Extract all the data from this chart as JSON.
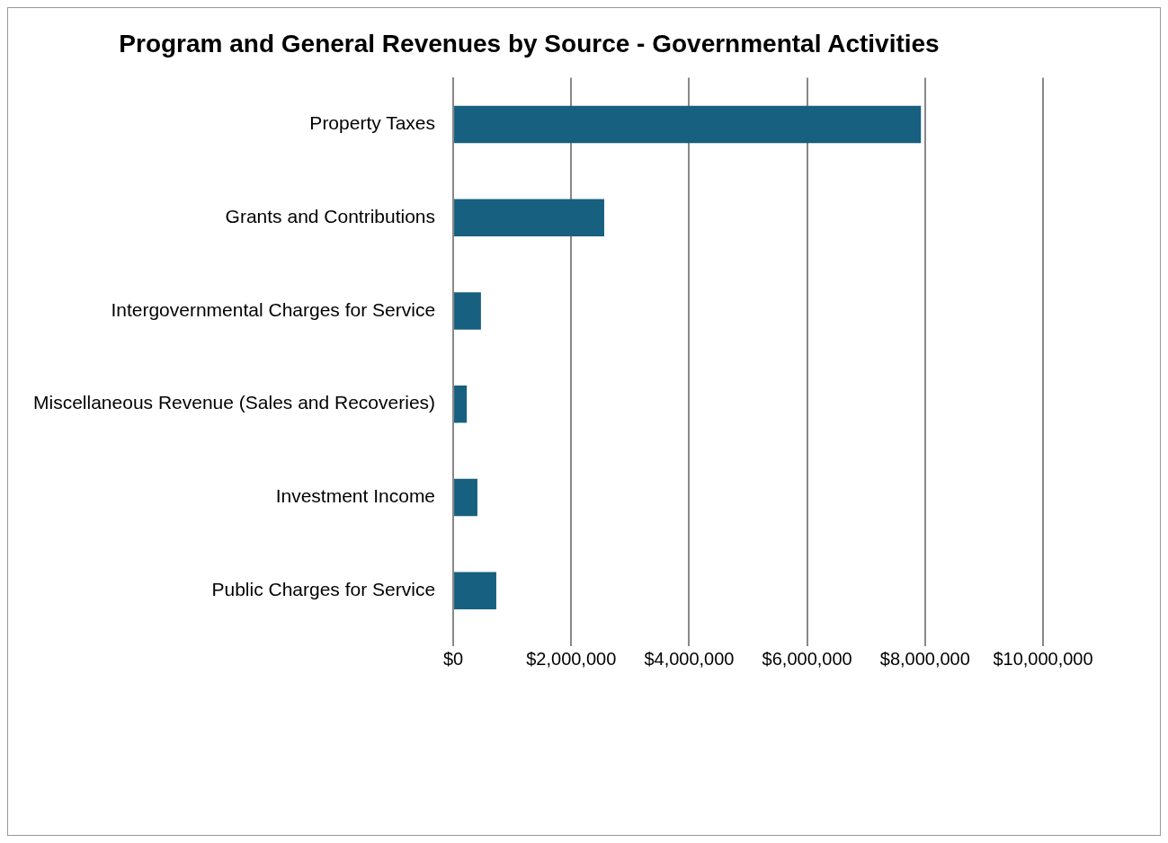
{
  "chart_data": {
    "type": "bar",
    "orientation": "horizontal",
    "title": "Program and General Revenues by Source - Governmental Activities",
    "categories": [
      "Property Taxes",
      "Grants and Contributions",
      "Intergovernmental Charges for Service",
      "Miscellaneous Revenue (Sales and Recoveries)",
      "Investment Income",
      "Public Charges for Service"
    ],
    "values": [
      7930000,
      2560000,
      470000,
      230000,
      410000,
      730000
    ],
    "color": "#17607f",
    "xlim": [
      0,
      10000000
    ],
    "xticks": [
      {
        "value": 0,
        "label": "$0"
      },
      {
        "value": 2000000,
        "label": "$2,000,000"
      },
      {
        "value": 4000000,
        "label": "$4,000,000"
      },
      {
        "value": 6000000,
        "label": "$6,000,000"
      },
      {
        "value": 8000000,
        "label": "$8,000,000"
      },
      {
        "value": 10000000,
        "label": "$10,000,000"
      }
    ],
    "grid": "x"
  }
}
